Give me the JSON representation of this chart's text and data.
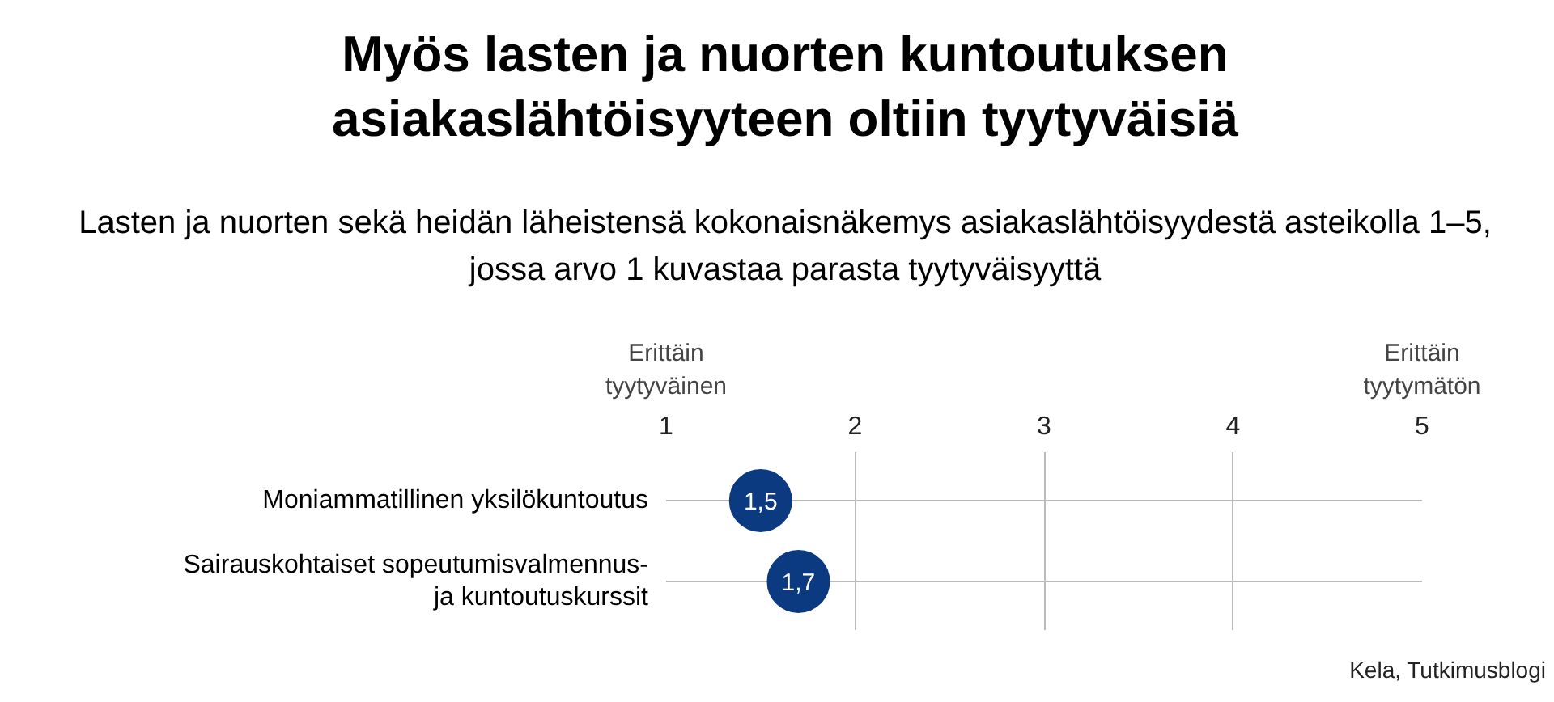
{
  "chart_data": {
    "type": "scatter",
    "orientation": "horizontal",
    "title": "Myös lasten ja nuorten kuntoutuksen\nasiakaslähtöisyyteen oltiin tyytyväisiä",
    "subtitle": "Lasten ja nuorten sekä heidän läheistensä kokonaisnäkemys asiakaslähtöisyydestä asteikolla 1–5,\njossa arvo 1 kuvastaa parasta tyytyväisyyttä",
    "categories": [
      "Moniammatillinen yksilökuntoutus",
      "Sairauskohtaiset sopeutumisvalmennus-\nja kuntoutuskurssit"
    ],
    "series": [
      {
        "color": "#0b3a80",
        "values": [
          1.5,
          1.7
        ]
      }
    ],
    "value_labels": [
      "1,5",
      "1,7"
    ],
    "xlim": [
      1,
      5
    ],
    "xticks": [
      1,
      2,
      3,
      4,
      5
    ],
    "grid": true,
    "marker": "circle",
    "annotations": [
      "Erittäin\ntyytyväinen",
      "Erittäin\ntyytymätön",
      "Kela, Tutkimusblogi"
    ]
  }
}
